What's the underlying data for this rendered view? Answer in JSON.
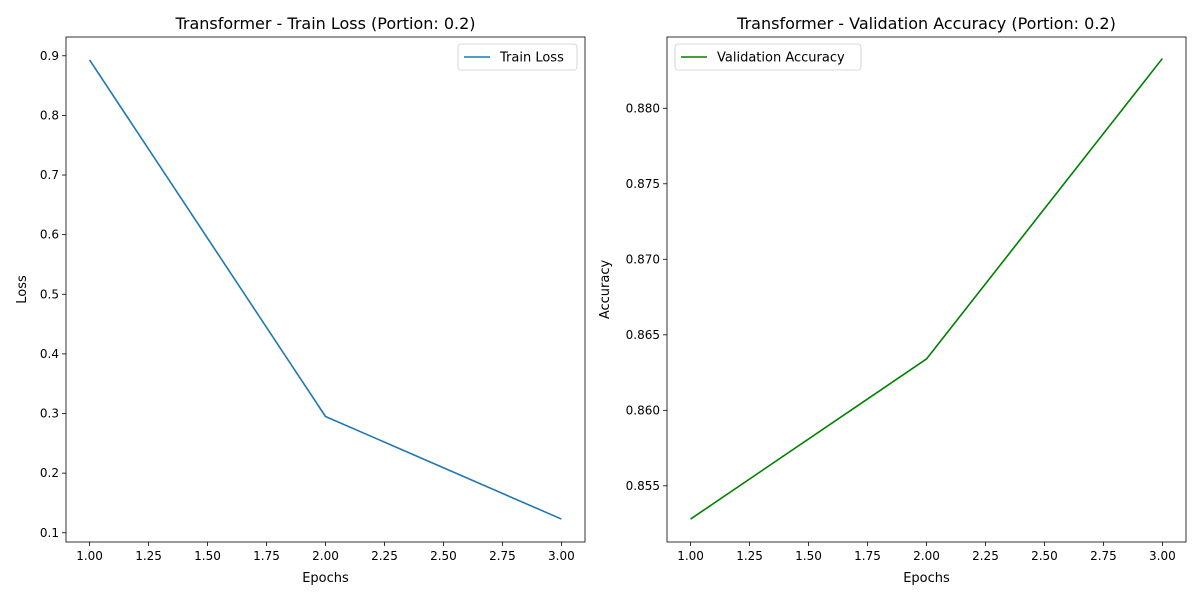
{
  "chart_data": [
    {
      "type": "line",
      "title": "Transformer - Train Loss (Portion: 0.2)",
      "xlabel": "Epochs",
      "ylabel": "Loss",
      "x": [
        1,
        2,
        3
      ],
      "series": [
        {
          "name": "Train Loss",
          "values": [
            0.893,
            0.295,
            0.123
          ],
          "color": "#1f77b4"
        }
      ],
      "xlim": [
        0.9,
        3.1
      ],
      "ylim": [
        0.0845,
        0.9315
      ],
      "xticks": [
        1.0,
        1.25,
        1.5,
        1.75,
        2.0,
        2.25,
        2.5,
        2.75,
        3.0
      ],
      "xtick_labels": [
        "1.00",
        "1.25",
        "1.50",
        "1.75",
        "2.00",
        "2.25",
        "2.50",
        "2.75",
        "3.00"
      ],
      "yticks": [
        0.1,
        0.2,
        0.3,
        0.4,
        0.5,
        0.6,
        0.7,
        0.8,
        0.9
      ],
      "ytick_labels": [
        "0.1",
        "0.2",
        "0.3",
        "0.4",
        "0.5",
        "0.6",
        "0.7",
        "0.8",
        "0.9"
      ],
      "grid": false,
      "legend": "upper right"
    },
    {
      "type": "line",
      "title": "Transformer - Validation Accuracy (Portion: 0.2)",
      "xlabel": "Epochs",
      "ylabel": "Accuracy",
      "x": [
        1,
        2,
        3
      ],
      "series": [
        {
          "name": "Validation Accuracy",
          "values": [
            0.8528,
            0.8634,
            0.8833
          ],
          "color": "#008000"
        }
      ],
      "xlim": [
        0.9,
        3.1
      ],
      "ylim": [
        0.85128,
        0.88472
      ],
      "xticks": [
        1.0,
        1.25,
        1.5,
        1.75,
        2.0,
        2.25,
        2.5,
        2.75,
        3.0
      ],
      "xtick_labels": [
        "1.00",
        "1.25",
        "1.50",
        "1.75",
        "2.00",
        "2.25",
        "2.50",
        "2.75",
        "3.00"
      ],
      "yticks": [
        0.855,
        0.86,
        0.865,
        0.87,
        0.875,
        0.88
      ],
      "ytick_labels": [
        "0.855",
        "0.860",
        "0.865",
        "0.870",
        "0.875",
        "0.880"
      ],
      "grid": false,
      "legend": "upper left"
    }
  ]
}
